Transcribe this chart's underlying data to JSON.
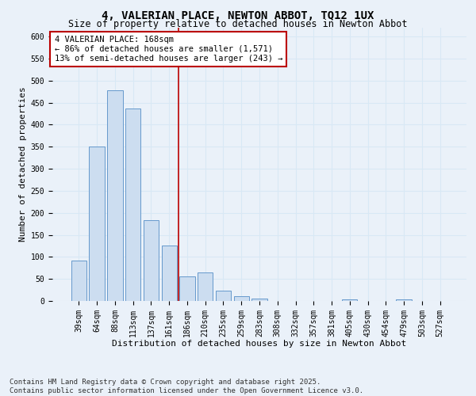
{
  "title1": "4, VALERIAN PLACE, NEWTON ABBOT, TQ12 1UX",
  "title2": "Size of property relative to detached houses in Newton Abbot",
  "xlabel": "Distribution of detached houses by size in Newton Abbot",
  "ylabel": "Number of detached properties",
  "bar_labels": [
    "39sqm",
    "64sqm",
    "88sqm",
    "113sqm",
    "137sqm",
    "161sqm",
    "186sqm",
    "210sqm",
    "235sqm",
    "259sqm",
    "283sqm",
    "308sqm",
    "332sqm",
    "357sqm",
    "381sqm",
    "405sqm",
    "430sqm",
    "454sqm",
    "479sqm",
    "503sqm",
    "527sqm"
  ],
  "bar_values": [
    92,
    350,
    478,
    437,
    183,
    125,
    56,
    65,
    24,
    11,
    6,
    0,
    0,
    0,
    0,
    4,
    0,
    0,
    3,
    0,
    0
  ],
  "bar_color": "#ccddf0",
  "bar_edge_color": "#6699cc",
  "grid_color": "#d8e8f5",
  "background_color": "#eaf1f9",
  "vline_x": 5.5,
  "vline_color": "#bb0000",
  "annotation_text": "4 VALERIAN PLACE: 168sqm\n← 86% of detached houses are smaller (1,571)\n13% of semi-detached houses are larger (243) →",
  "annotation_box_color": "#ffffff",
  "annotation_box_edge": "#bb0000",
  "ylim": [
    0,
    620
  ],
  "yticks": [
    0,
    50,
    100,
    150,
    200,
    250,
    300,
    350,
    400,
    450,
    500,
    550,
    600
  ],
  "footer": "Contains HM Land Registry data © Crown copyright and database right 2025.\nContains public sector information licensed under the Open Government Licence v3.0.",
  "title1_fontsize": 10,
  "title2_fontsize": 8.5,
  "xlabel_fontsize": 8,
  "ylabel_fontsize": 8,
  "tick_fontsize": 7,
  "annotation_fontsize": 7.5,
  "footer_fontsize": 6.5
}
